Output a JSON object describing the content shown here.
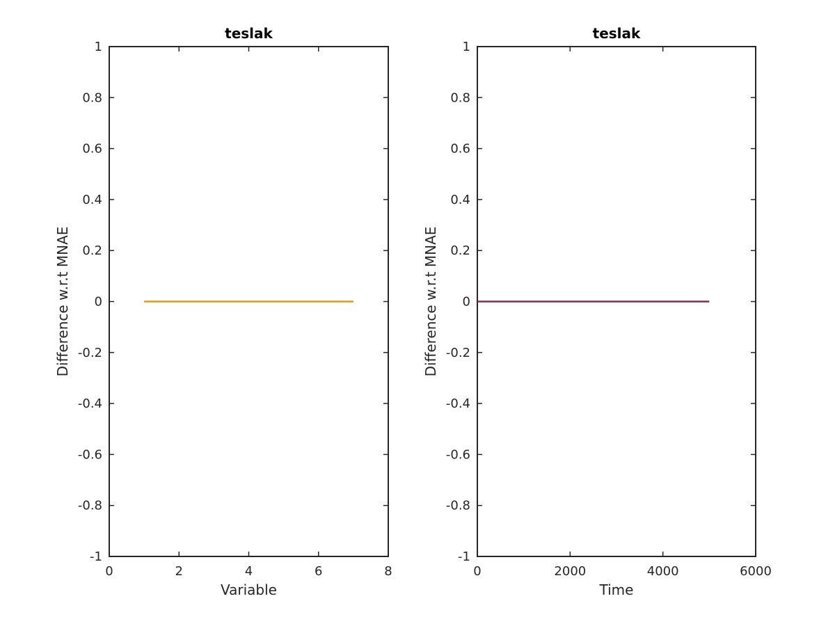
{
  "chart_data": [
    {
      "type": "line",
      "title": "teslak",
      "xlabel": "Variable",
      "ylabel": "Difference w.r.t MNAE",
      "xlim": [
        0,
        8
      ],
      "ylim": [
        -1,
        1
      ],
      "xticks": [
        0,
        2,
        4,
        6,
        8
      ],
      "xtick_labels": [
        "0",
        "2",
        "4",
        "6",
        "8"
      ],
      "yticks": [
        -1,
        -0.8,
        -0.6,
        -0.4,
        -0.2,
        0,
        0.2,
        0.4,
        0.6,
        0.8,
        1
      ],
      "ytick_labels": [
        "-1",
        "-0.8",
        "-0.6",
        "-0.4",
        "-0.2",
        "0",
        "0.2",
        "0.4",
        "0.6",
        "0.8",
        "1"
      ],
      "grid": false,
      "series": [
        {
          "color": "#d9952a",
          "x": [
            1,
            2,
            3,
            4,
            5,
            6,
            7
          ],
          "y": [
            0,
            0,
            0,
            0,
            0,
            0,
            0
          ]
        }
      ]
    },
    {
      "type": "line",
      "title": "teslak",
      "xlabel": "Time",
      "ylabel": "Difference w.r.t MNAE",
      "xlim": [
        0,
        6000
      ],
      "ylim": [
        -1,
        1
      ],
      "xticks": [
        0,
        2000,
        4000,
        6000
      ],
      "xtick_labels": [
        "0",
        "2000",
        "4000",
        "6000"
      ],
      "yticks": [
        -1,
        -0.8,
        -0.6,
        -0.4,
        -0.2,
        0,
        0.2,
        0.4,
        0.6,
        0.8,
        1
      ],
      "ytick_labels": [
        "-1",
        "-0.8",
        "-0.6",
        "-0.4",
        "-0.2",
        "0",
        "0.2",
        "0.4",
        "0.6",
        "0.8",
        "1"
      ],
      "grid": false,
      "series": [
        {
          "color": "#7e2f4e",
          "x": [
            0,
            5000
          ],
          "y": [
            0,
            0
          ]
        }
      ]
    }
  ]
}
